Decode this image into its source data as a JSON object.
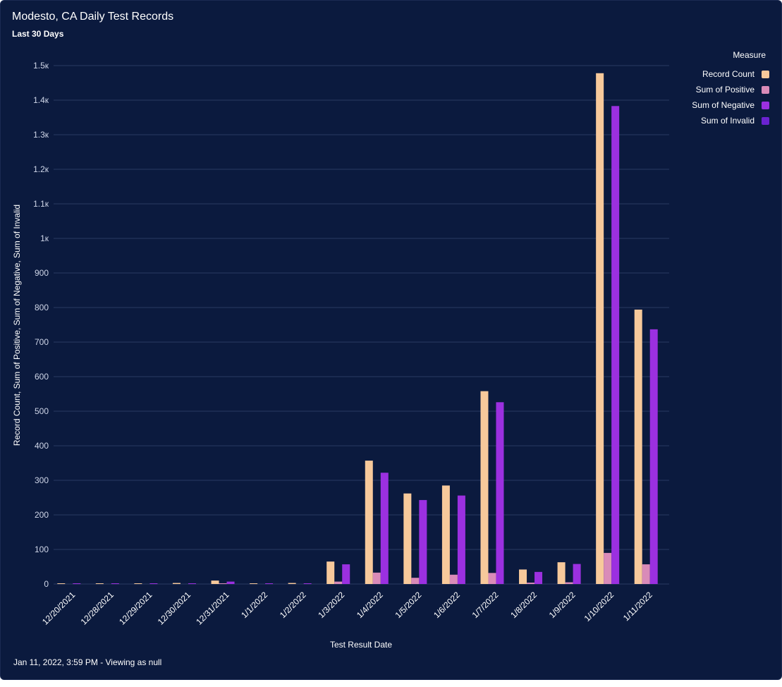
{
  "title": "Modesto, CA Daily Test Records",
  "subtitle": "Last 30 Days",
  "footer": "Jan 11, 2022, 3:59 PM - Viewing as null",
  "legend": {
    "title": "Measure"
  },
  "colors": {
    "background": "#0b1a3e",
    "gridline": "#2a3a62",
    "Record Count": "#f7c99b",
    "Sum of Positive": "#d98bb8",
    "Sum of Negative": "#9b30e0",
    "Sum of Invalid": "#6a22d0"
  },
  "chart_data": {
    "type": "bar",
    "title": "Modesto, CA Daily Test Records",
    "subtitle": "Last 30 Days",
    "xlabel": "Test Result Date",
    "ylabel": "Record Count, Sum of Positive, Sum of Negative, Sum of Invalid",
    "ylim": [
      0,
      1500
    ],
    "yticks": [
      0,
      100,
      200,
      300,
      400,
      500,
      600,
      700,
      800,
      900,
      1000,
      1100,
      1200,
      1300,
      1400,
      1500
    ],
    "ytick_labels": [
      "0",
      "100",
      "200",
      "300",
      "400",
      "500",
      "600",
      "700",
      "800",
      "900",
      "1к",
      "1.1к",
      "1.2к",
      "1.3к",
      "1.4к",
      "1.5к"
    ],
    "grid": true,
    "legend_position": "top-right",
    "categories": [
      "12/20/2021",
      "12/28/2021",
      "12/29/2021",
      "12/30/2021",
      "12/31/2021",
      "1/1/2022",
      "1/2/2022",
      "1/3/2022",
      "1/4/2022",
      "1/5/2022",
      "1/6/2022",
      "1/7/2022",
      "1/8/2022",
      "1/9/2022",
      "1/10/2022",
      "1/11/2022"
    ],
    "series": [
      {
        "name": "Record Count",
        "values": [
          1,
          1,
          1,
          3,
          10,
          2,
          3,
          65,
          357,
          262,
          285,
          558,
          42,
          63,
          1478,
          794
        ]
      },
      {
        "name": "Sum of Positive",
        "values": [
          0,
          0,
          0,
          0,
          2,
          0,
          0,
          7,
          33,
          18,
          27,
          32,
          4,
          5,
          90,
          57
        ]
      },
      {
        "name": "Sum of Negative",
        "values": [
          1,
          1,
          1,
          2,
          7,
          2,
          2,
          57,
          322,
          243,
          256,
          526,
          35,
          58,
          1383,
          737
        ]
      },
      {
        "name": "Sum of Invalid",
        "values": [
          0,
          0,
          0,
          0,
          0,
          0,
          0,
          0,
          0,
          0,
          0,
          0,
          0,
          0,
          0,
          0
        ]
      }
    ]
  }
}
